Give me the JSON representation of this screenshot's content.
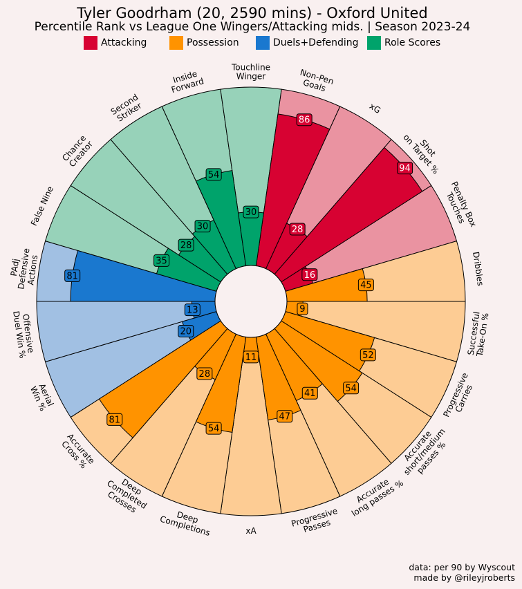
{
  "title": "Tyler Goodrham (20, 2590 mins) - Oxford United",
  "subtitle": "Percentile Rank vs League One Wingers/Attacking mids. | Season 2023-24",
  "legend": [
    {
      "label": "Attacking",
      "color": "#d70232"
    },
    {
      "label": "Possession",
      "color": "#ff9300"
    },
    {
      "label": "Duels+Defending",
      "color": "#1a78cf"
    },
    {
      "label": "Role Scores",
      "color": "#00a36b"
    }
  ],
  "credits": {
    "line1": "data: per 90 by Wyscout",
    "line2": "made by @rileyjroberts"
  },
  "chart_data": {
    "type": "radar-bar",
    "range": [
      0,
      100
    ],
    "categories": [
      {
        "label": "Non-Pen\nGoals",
        "value": 86,
        "group": "Attacking"
      },
      {
        "label": "xG",
        "value": 28,
        "group": "Attacking"
      },
      {
        "label": "Shot\non Target %",
        "value": 94,
        "group": "Attacking"
      },
      {
        "label": "Penalty Box\nTouches",
        "value": 16,
        "group": "Attacking"
      },
      {
        "label": "Dribbles",
        "value": 45,
        "group": "Possession"
      },
      {
        "label": "Successful\nTake-On %",
        "value": 9,
        "group": "Possession"
      },
      {
        "label": "Progressive\nCarries",
        "value": 52,
        "group": "Possession"
      },
      {
        "label": "Accurate\nshort/medium\npasses %",
        "value": 54,
        "group": "Possession"
      },
      {
        "label": "Accurate\nlong passes %",
        "value": 41,
        "group": "Possession"
      },
      {
        "label": "Progressive\nPasses",
        "value": 47,
        "group": "Possession"
      },
      {
        "label": "xA",
        "value": 11,
        "group": "Possession"
      },
      {
        "label": "Deep\nCompletions",
        "value": 54,
        "group": "Possession"
      },
      {
        "label": "Deep\nCompleted\nCrosses",
        "value": 28,
        "group": "Possession"
      },
      {
        "label": "Accurate\nCross %",
        "value": 81,
        "group": "Possession"
      },
      {
        "label": "Aerial\nWin %",
        "value": 20,
        "group": "Duels+Defending"
      },
      {
        "label": "Offensive\nDuel Win %",
        "value": 13,
        "group": "Duels+Defending"
      },
      {
        "label": "PAdj\nDefensive\nActions",
        "value": 81,
        "group": "Duels+Defending"
      },
      {
        "label": "False Nine",
        "value": 35,
        "group": "Role Scores"
      },
      {
        "label": "Chance\nCreator",
        "value": 28,
        "group": "Role Scores"
      },
      {
        "label": "Second\nStriker",
        "value": 30,
        "group": "Role Scores"
      },
      {
        "label": "Inside\nForward",
        "value": 54,
        "group": "Role Scores"
      },
      {
        "label": "Touchline\nWinger",
        "value": 30,
        "group": "Role Scores"
      }
    ],
    "group_colors": {
      "Attacking": {
        "fill": "#d70232",
        "light": "#ea93a1"
      },
      "Possession": {
        "fill": "#ff9300",
        "light": "#fdcc94"
      },
      "Duels+Defending": {
        "fill": "#1a78cf",
        "light": "#a1c0e3"
      },
      "Role Scores": {
        "fill": "#00a36b",
        "light": "#97d2b9"
      }
    }
  }
}
